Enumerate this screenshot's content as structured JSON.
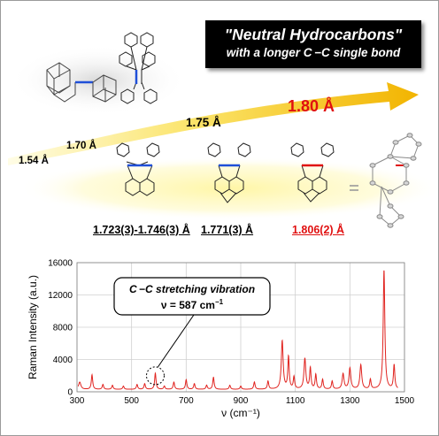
{
  "header": {
    "title_line1": "\"Neutral Hydrocarbons\"",
    "title_line2": "with a longer C −C single bond"
  },
  "arrow_labels": {
    "l154": "1.54 Å",
    "l170": "1.70 Å",
    "l175": "1.75 Å",
    "l180": "1.80 Å"
  },
  "compound_labels": [
    "1.723(3)-1.746(3) Å",
    "1.771(3) Å",
    "1.806(2) Å"
  ],
  "colors": {
    "bond_blue": "#1f4fd8",
    "bond_red": "#e01010",
    "arrow_start": "#fffde6",
    "arrow_end": "#f2b400",
    "glow": "#fff6a6",
    "spectrum": "#e0231f"
  },
  "chart_data": {
    "type": "line",
    "ylabel": "Raman Intensity (a.u.)",
    "xlabel": "ν (cm⁻¹)",
    "xlim": [
      300,
      1500
    ],
    "ylim": [
      0,
      16000
    ],
    "x_ticks": [
      "300",
      "500",
      "700",
      "900",
      "1100",
      "1300",
      "1500"
    ],
    "y_ticks": [
      "0",
      "4000",
      "8000",
      "12000",
      "16000"
    ],
    "grid": true,
    "annotation": {
      "line1": "C −C stretching vibration",
      "line2": "ν = 587 cm",
      "sup": "−1",
      "at_x": 587
    },
    "baseline": 300,
    "peaks": [
      {
        "x": 310,
        "y": 900,
        "w": 5
      },
      {
        "x": 355,
        "y": 1800,
        "w": 3
      },
      {
        "x": 395,
        "y": 600,
        "w": 3
      },
      {
        "x": 430,
        "y": 500,
        "w": 3
      },
      {
        "x": 470,
        "y": 400,
        "w": 3
      },
      {
        "x": 520,
        "y": 600,
        "w": 3
      },
      {
        "x": 548,
        "y": 700,
        "w": 3
      },
      {
        "x": 587,
        "y": 2000,
        "w": 3
      },
      {
        "x": 620,
        "y": 400,
        "w": 3
      },
      {
        "x": 655,
        "y": 900,
        "w": 3
      },
      {
        "x": 700,
        "y": 1200,
        "w": 3
      },
      {
        "x": 730,
        "y": 700,
        "w": 3
      },
      {
        "x": 775,
        "y": 500,
        "w": 3
      },
      {
        "x": 800,
        "y": 1500,
        "w": 3
      },
      {
        "x": 860,
        "y": 500,
        "w": 3
      },
      {
        "x": 900,
        "y": 400,
        "w": 3
      },
      {
        "x": 950,
        "y": 900,
        "w": 3
      },
      {
        "x": 1000,
        "y": 1000,
        "w": 3
      },
      {
        "x": 1052,
        "y": 6000,
        "w": 4
      },
      {
        "x": 1075,
        "y": 4000,
        "w": 3
      },
      {
        "x": 1095,
        "y": 1500,
        "w": 3
      },
      {
        "x": 1135,
        "y": 3800,
        "w": 4
      },
      {
        "x": 1155,
        "y": 2600,
        "w": 3
      },
      {
        "x": 1175,
        "y": 1800,
        "w": 3
      },
      {
        "x": 1200,
        "y": 1200,
        "w": 3
      },
      {
        "x": 1235,
        "y": 1000,
        "w": 3
      },
      {
        "x": 1275,
        "y": 1900,
        "w": 4
      },
      {
        "x": 1300,
        "y": 2600,
        "w": 4
      },
      {
        "x": 1340,
        "y": 3000,
        "w": 4
      },
      {
        "x": 1375,
        "y": 1200,
        "w": 3
      },
      {
        "x": 1425,
        "y": 14800,
        "w": 3.5
      },
      {
        "x": 1462,
        "y": 3000,
        "w": 3
      }
    ]
  }
}
